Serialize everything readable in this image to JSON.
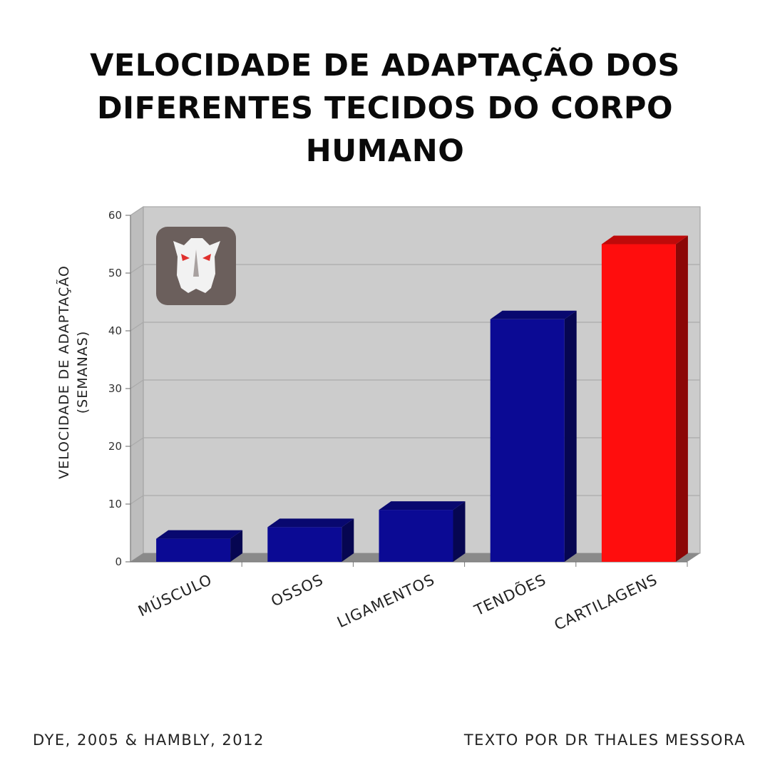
{
  "header": {
    "title_lines": [
      "VELOCIDADE DE ADAPTAÇÃO DOS",
      "DIFERENTES TECIDOS DO CORPO",
      "HUMANO"
    ]
  },
  "chart_data": {
    "type": "bar",
    "title": "VELOCIDADE DE ADAPTAÇÃO DOS DIFERENTES TECIDOS DO CORPO HUMANO",
    "ylabel_lines": [
      "VELOCIDADE DE ADAPTAÇÃO",
      "(SEMANAS)"
    ],
    "xlabel": "",
    "categories": [
      "MÚSCULO",
      "OSSOS",
      "LIGAMENTOS",
      "TENDÕES",
      "CARTILAGENS"
    ],
    "values": [
      4,
      6,
      9,
      42,
      55
    ],
    "bar_colors": [
      "#0b0a94",
      "#0b0a94",
      "#0b0a94",
      "#0b0a94",
      "#ff0d0d"
    ],
    "yticks": [
      "0",
      "10",
      "20",
      "30",
      "40",
      "50",
      "60"
    ],
    "ylim": [
      0,
      60
    ],
    "grid": true,
    "style": "3d",
    "legend": "none"
  },
  "logo": {
    "icon": "wolf-logo-icon",
    "colors": {
      "bg": "#6b5f5c",
      "eyes": "#e0302d"
    }
  },
  "footer": {
    "source": "DYE, 2005 & HAMBLY, 2012",
    "credit": "TEXTO POR DR THALES MESSORA"
  },
  "colors": {
    "plot_bg": "#cccccc",
    "floor": "#8a8a8a",
    "grid": "#aaaaaa"
  }
}
